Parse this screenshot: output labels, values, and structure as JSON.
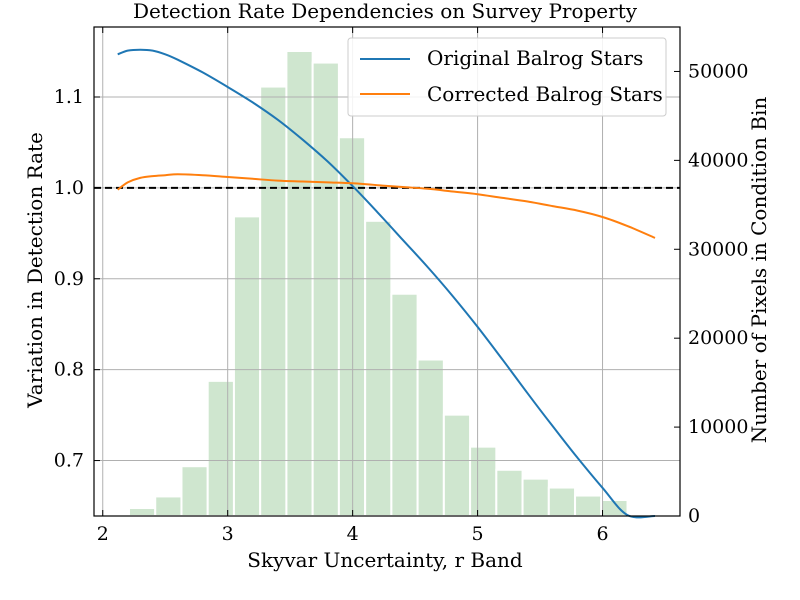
{
  "chart_data": {
    "type": "line",
    "title": "Detection Rate Dependencies on Survey Property",
    "xlabel": "Skyvar Uncertainty, r Band",
    "ylabel": "Variation in Detection Rate",
    "y2label": "Number of Pixels in Condition Bin",
    "xlim": [
      1.93,
      6.62
    ],
    "ylim": [
      0.639,
      1.177
    ],
    "y2lim": [
      0,
      55000
    ],
    "x_ticks": [
      2,
      3,
      4,
      5,
      6
    ],
    "y_ticks": [
      0.7,
      0.8,
      0.9,
      1.0,
      1.1
    ],
    "y2_ticks": [
      0,
      10000,
      20000,
      30000,
      40000,
      50000
    ],
    "x_tick_labels": [
      "2",
      "3",
      "4",
      "5",
      "6"
    ],
    "y_tick_labels": [
      "0.7",
      "0.8",
      "0.9",
      "1.0",
      "1.1"
    ],
    "y2_tick_labels": [
      "0",
      "10000",
      "20000",
      "30000",
      "40000",
      "50000"
    ],
    "grid": true,
    "legend_position": "top-right",
    "reference_line": {
      "y": 1.0,
      "style": "dashed",
      "color": "#000000"
    },
    "series": [
      {
        "name": "Original Balrog Stars",
        "color": "#1f77b4",
        "x": [
          2.12,
          2.2,
          2.3,
          2.4,
          2.5,
          2.6,
          2.8,
          3.0,
          3.2,
          3.4,
          3.6,
          3.8,
          4.0,
          4.2,
          4.4,
          4.6,
          4.8,
          5.0,
          5.2,
          5.4,
          5.6,
          5.8,
          6.0,
          6.2,
          6.42
        ],
        "y": [
          1.147,
          1.151,
          1.152,
          1.151,
          1.147,
          1.141,
          1.127,
          1.111,
          1.094,
          1.075,
          1.053,
          1.029,
          1.002,
          0.973,
          0.943,
          0.913,
          0.881,
          0.847,
          0.811,
          0.774,
          0.738,
          0.703,
          0.67,
          0.64,
          0.606
        ]
      },
      {
        "name": "Corrected Balrog Stars",
        "color": "#ff7f0e",
        "x": [
          2.12,
          2.2,
          2.3,
          2.4,
          2.5,
          2.6,
          2.8,
          3.0,
          3.2,
          3.4,
          3.6,
          3.8,
          4.0,
          4.2,
          4.4,
          4.6,
          4.8,
          5.0,
          5.2,
          5.4,
          5.6,
          5.8,
          6.0,
          6.2,
          6.42
        ],
        "y": [
          0.998,
          1.006,
          1.011,
          1.013,
          1.014,
          1.015,
          1.014,
          1.012,
          1.01,
          1.008,
          1.007,
          1.006,
          1.005,
          1.003,
          1.001,
          0.999,
          0.996,
          0.993,
          0.989,
          0.985,
          0.98,
          0.975,
          0.968,
          0.958,
          0.945
        ]
      }
    ],
    "histogram": {
      "name": "Number of Pixels in Condition Bin",
      "color": "#cfe6cf",
      "bin_edges": [
        2.0,
        2.21,
        2.42,
        2.63,
        2.84,
        3.05,
        3.26,
        3.47,
        3.68,
        3.89,
        4.1,
        4.31,
        4.52,
        4.73,
        4.94,
        5.15,
        5.36,
        5.57,
        5.78,
        5.99,
        6.2,
        6.41
      ],
      "counts": [
        0,
        900,
        2200,
        5600,
        15200,
        33700,
        48300,
        52300,
        51000,
        42600,
        33200,
        25000,
        17600,
        11400,
        7800,
        5200,
        4200,
        3200,
        2300,
        1800,
        0
      ]
    }
  }
}
